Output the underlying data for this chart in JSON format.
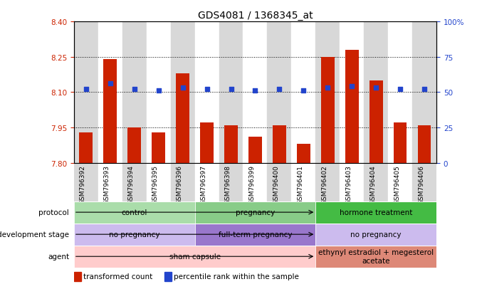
{
  "title": "GDS4081 / 1368345_at",
  "samples": [
    "GSM796392",
    "GSM796393",
    "GSM796394",
    "GSM796395",
    "GSM796396",
    "GSM796397",
    "GSM796398",
    "GSM796399",
    "GSM796400",
    "GSM796401",
    "GSM796402",
    "GSM796403",
    "GSM796404",
    "GSM796405",
    "GSM796406"
  ],
  "bar_values": [
    7.93,
    8.24,
    7.95,
    7.93,
    8.18,
    7.97,
    7.96,
    7.91,
    7.96,
    7.88,
    8.25,
    8.28,
    8.15,
    7.97,
    7.96
  ],
  "dot_values_pct": [
    52,
    56,
    52,
    51,
    53,
    52,
    52,
    51,
    52,
    51,
    53,
    54,
    53,
    52,
    52
  ],
  "ylim_left": [
    7.8,
    8.4
  ],
  "ylim_right": [
    0,
    100
  ],
  "yticks_left": [
    7.8,
    7.95,
    8.1,
    8.25,
    8.4
  ],
  "yticks_right": [
    0,
    25,
    50,
    75,
    100
  ],
  "bar_color": "#cc2200",
  "dot_color": "#2244cc",
  "bar_width": 0.55,
  "col_colors": [
    "#d8d8d8",
    "#ffffff"
  ],
  "protocol_groups": [
    {
      "text": "control",
      "start": 0,
      "end": 4,
      "color": "#aaddaa"
    },
    {
      "text": "pregnancy",
      "start": 5,
      "end": 9,
      "color": "#88cc88"
    },
    {
      "text": "hormone treatment",
      "start": 10,
      "end": 14,
      "color": "#44bb44"
    }
  ],
  "dev_stage_groups": [
    {
      "text": "no pregnancy",
      "start": 0,
      "end": 4,
      "color": "#ccbbee"
    },
    {
      "text": "full-term pregnancy",
      "start": 5,
      "end": 9,
      "color": "#9977cc"
    },
    {
      "text": "no pregnancy",
      "start": 10,
      "end": 14,
      "color": "#ccbbee"
    }
  ],
  "agent_groups": [
    {
      "text": "sham capsule",
      "start": 0,
      "end": 9,
      "color": "#ffcccc"
    },
    {
      "text": "ethynyl estradiol + megesterol\nacetate",
      "start": 10,
      "end": 14,
      "color": "#dd8877"
    }
  ],
  "row_labels": [
    "protocol",
    "development stage",
    "agent"
  ],
  "legend": [
    {
      "label": "transformed count",
      "color": "#cc2200"
    },
    {
      "label": "percentile rank within the sample",
      "color": "#2244cc"
    }
  ],
  "bg_color": "#ffffff"
}
